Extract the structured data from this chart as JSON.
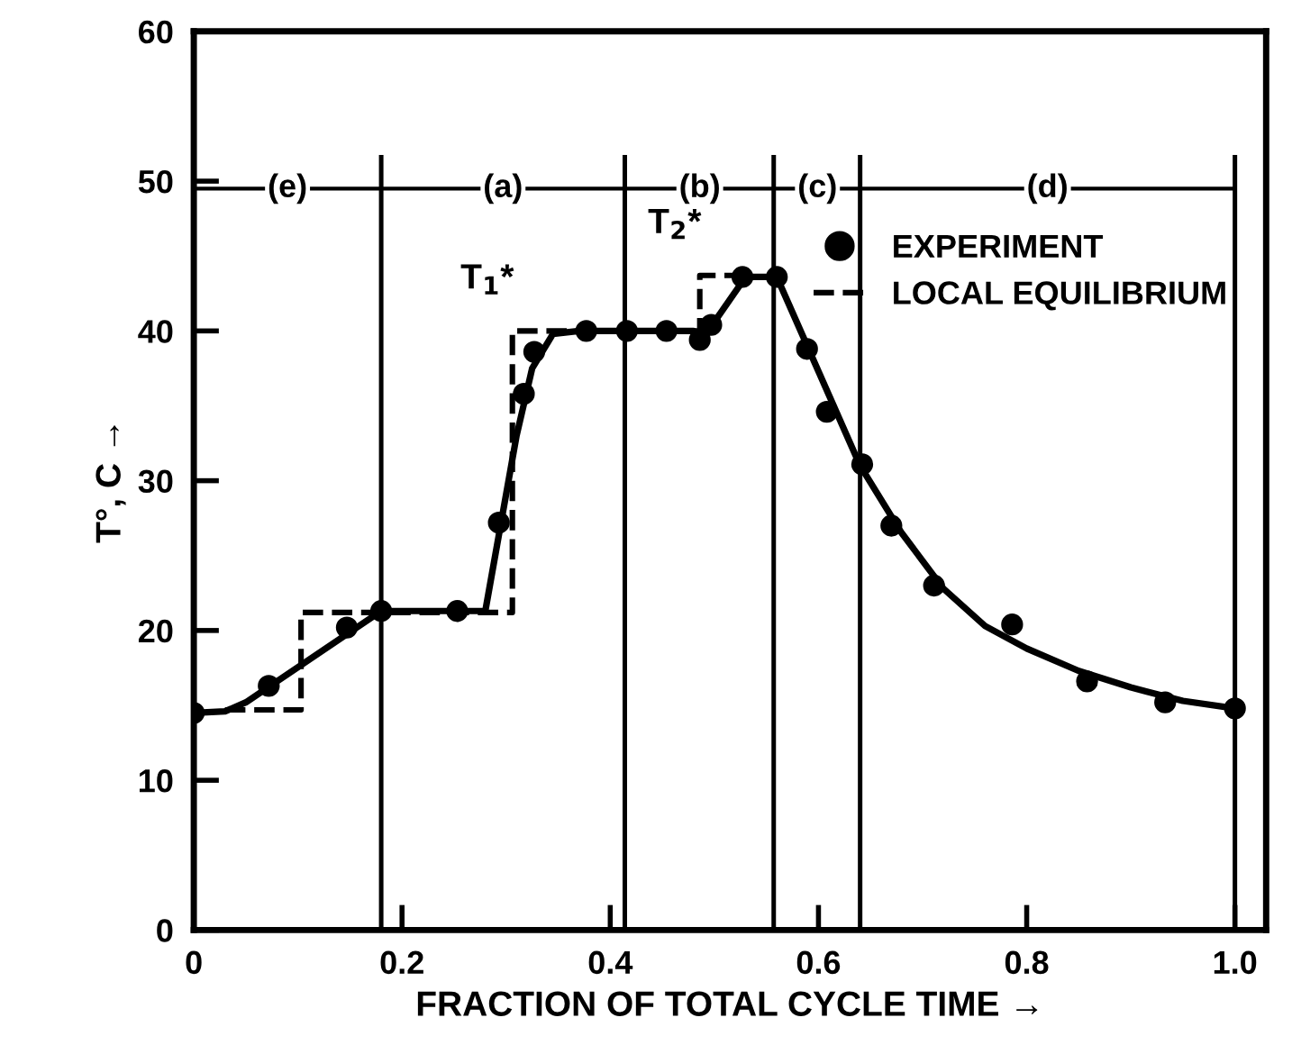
{
  "chart_data": {
    "type": "scatter",
    "xlabel": "FRACTION OF TOTAL CYCLE TIME →",
    "ylabel": "T°, C →",
    "xlim": [
      0,
      1.03
    ],
    "ylim": [
      0,
      60
    ],
    "xticks": [
      {
        "value": 0,
        "label": "0"
      },
      0.2,
      0.4,
      0.6,
      0.8,
      {
        "value": 1,
        "label": "1.0"
      }
    ],
    "yticks": [
      0,
      10,
      20,
      30,
      40,
      50,
      60
    ],
    "series": [
      {
        "name": "EXPERIMENT",
        "marker": "circle",
        "color": "#000000",
        "x": [
          0,
          0.072,
          0.147,
          0.18,
          0.253,
          0.293,
          0.317,
          0.327,
          0.377,
          0.416,
          0.454,
          0.486,
          0.497,
          0.527,
          0.56,
          0.589,
          0.608,
          0.642,
          0.67,
          0.711,
          0.786,
          0.858,
          0.933,
          1.0
        ],
        "values": [
          14.5,
          16.3,
          20.2,
          21.3,
          21.3,
          27.2,
          35.8,
          38.6,
          40,
          40,
          40,
          39.4,
          40.4,
          43.6,
          43.6,
          38.8,
          34.6,
          31.1,
          27.0,
          23.0,
          20.4,
          16.6,
          15.2,
          14.8
        ]
      },
      {
        "type": "line",
        "line_style": "solid",
        "color": "#000000",
        "x": [
          0,
          0.03,
          0.05,
          0.18,
          0.28,
          0.31,
          0.325,
          0.345,
          0.37,
          0.48,
          0.49,
          0.5,
          0.53,
          0.56,
          0.64,
          0.68,
          0.72,
          0.76,
          0.8,
          0.85,
          0.9,
          0.95,
          1.0
        ],
        "values": [
          14.5,
          14.6,
          15.2,
          21.3,
          21.3,
          33,
          37.5,
          39.8,
          40,
          40,
          39.4,
          40.6,
          43.6,
          43.6,
          31,
          26.5,
          22.8,
          20.3,
          18.8,
          17.3,
          16.2,
          15.3,
          14.8
        ]
      },
      {
        "name": "LOCAL EQUILIBRIUM",
        "type": "line",
        "line_style": "dashed",
        "color": "#000000",
        "x": [
          0.03,
          0.103,
          0.103,
          0.306,
          0.306,
          0.486,
          0.486,
          0.53
        ],
        "values": [
          14.7,
          14.7,
          21.2,
          21.2,
          40,
          40,
          43.7,
          43.7
        ]
      }
    ],
    "ref_lines": [
      {
        "axis": "y",
        "value": 49.5
      },
      {
        "axis": "x",
        "value": 0.18
      },
      {
        "axis": "x",
        "value": 0.414
      },
      {
        "axis": "x",
        "value": 0.557
      },
      {
        "axis": "x",
        "value": 0.64
      },
      {
        "axis": "x",
        "value": 1.0
      }
    ],
    "annotations": [
      {
        "text": "T$_{1}$*",
        "x": 0.306,
        "y": 40
      },
      {
        "text": "T$_{2}$*",
        "x": 0.486,
        "y": 43.7
      },
      {
        "text": "(e)",
        "x": 0.09,
        "y": 49.5
      },
      {
        "text": "(a)",
        "x": 0.297,
        "y": 49.5
      },
      {
        "text": "(b)",
        "x": 0.486,
        "y": 49.5
      },
      {
        "text": "(c)",
        "x": 0.599,
        "y": 49.5
      },
      {
        "text": "(d)",
        "x": 0.82,
        "y": 49.5
      }
    ],
    "legend": "top right",
    "grid": false
  }
}
